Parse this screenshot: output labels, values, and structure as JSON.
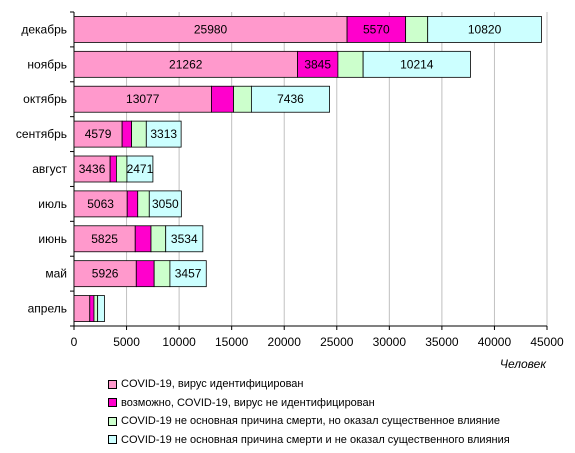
{
  "chart_data": {
    "type": "bar",
    "orientation": "horizontal",
    "stacked": true,
    "categories": [
      "декабрь",
      "ноябрь",
      "октябрь",
      "сентябрь",
      "август",
      "июль",
      "июнь",
      "май",
      "апрель"
    ],
    "series": [
      {
        "name": "COVID-19,  вирус идентифицирован",
        "color": "#ff99cc",
        "values": [
          25980,
          21262,
          13077,
          4579,
          3436,
          5063,
          5825,
          5926,
          1500
        ]
      },
      {
        "name": "возможно, COVID-19,  вирус не идентифицирован",
        "color": "#ff00cc",
        "values": [
          5570,
          3845,
          2100,
          900,
          600,
          1000,
          1500,
          1700,
          400
        ]
      },
      {
        "name": "COVID-19  не основная причина смерти, но оказал  существенное влияние",
        "color": "#ccffcc",
        "values": [
          2100,
          2400,
          1700,
          1400,
          1000,
          1100,
          1400,
          1500,
          350
        ]
      },
      {
        "name": "COVID-19  не основная причина смерти и не оказал  существенного влияния",
        "color": "#ccffff",
        "values": [
          10820,
          10214,
          7436,
          3313,
          2471,
          3050,
          3534,
          3457,
          650
        ]
      }
    ],
    "labels": [
      [
        "25980",
        "21262",
        "13077",
        "4579",
        "3436",
        "5063",
        "5825",
        "5926",
        ""
      ],
      [
        "5570",
        "3845",
        "",
        "",
        "",
        "",
        "",
        "",
        ""
      ],
      [
        "",
        "",
        "",
        "",
        "",
        "",
        "",
        "",
        ""
      ],
      [
        "10820",
        "10214",
        "7436",
        "3313",
        "2471",
        "3050",
        "3534",
        "3457",
        ""
      ]
    ],
    "xlim": [
      0,
      45000
    ],
    "xticks": [
      0,
      5000,
      10000,
      15000,
      20000,
      25000,
      30000,
      35000,
      40000,
      45000
    ],
    "xlabel": "Человек",
    "grid": "vertical",
    "legend": "bottom"
  }
}
